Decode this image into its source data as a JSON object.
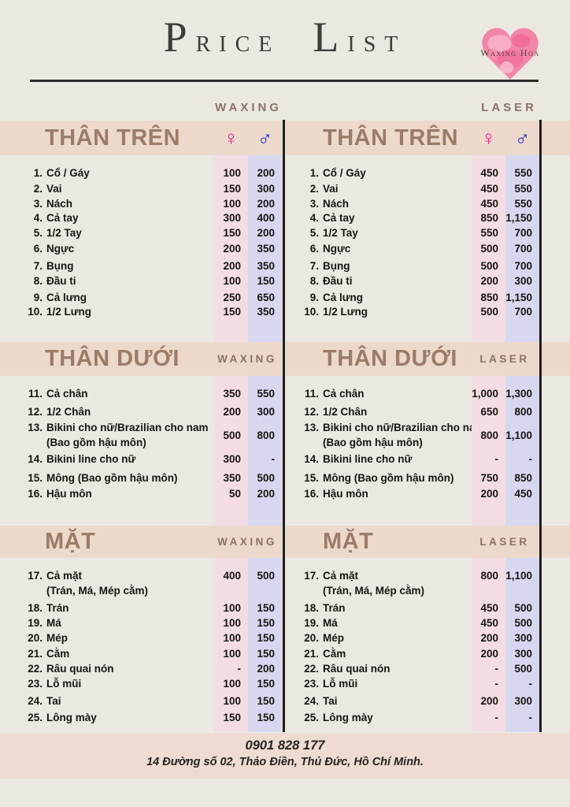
{
  "header": {
    "title_words": [
      "Price",
      "List"
    ],
    "logo_text": "Waxing Hoa"
  },
  "method_labels": {
    "waxing": "WAXING",
    "laser": "LASER"
  },
  "gender": {
    "female_symbol": "♀",
    "male_symbol": "♂"
  },
  "colors": {
    "background": "#ebe8e2",
    "band": "#ecd9cc",
    "female_column": "#f3dce4",
    "male_column": "#d7d8ef",
    "accent_brown": "#9b7c69",
    "female_symbol": "#ed1e7f",
    "male_symbol": "#2a1fd6",
    "heart_pink": "#f286a8"
  },
  "sections": [
    {
      "title": "THÂN TRÊN",
      "items": [
        {
          "num": "1.",
          "label": "Cổ / Gáy",
          "sub": null,
          "wax": [
            "100",
            "200"
          ],
          "laser": [
            "450",
            "550"
          ]
        },
        {
          "num": "2.",
          "label": "Vai",
          "sub": null,
          "wax": [
            "150",
            "300"
          ],
          "laser": [
            "450",
            "550"
          ]
        },
        {
          "num": "3.",
          "label": "Nách",
          "sub": null,
          "wax": [
            "100",
            "200"
          ],
          "laser": [
            "450",
            "550"
          ]
        },
        {
          "num": "4.",
          "label": "Cả tay",
          "sub": null,
          "wax": [
            "300",
            "400"
          ],
          "laser": [
            "850",
            "1,150"
          ]
        },
        {
          "num": "5.",
          "label": "1/2 Tay",
          "sub": null,
          "wax": [
            "150",
            "200"
          ],
          "laser": [
            "550",
            "700"
          ]
        },
        {
          "num": "6.",
          "label": "Ngực",
          "sub": null,
          "wax": [
            "200",
            "350"
          ],
          "laser": [
            "500",
            "700"
          ]
        },
        {
          "num": "7.",
          "label": "Bụng",
          "sub": null,
          "wax": [
            "200",
            "350"
          ],
          "laser": [
            "500",
            "700"
          ]
        },
        {
          "num": "8.",
          "label": "Đầu ti",
          "sub": null,
          "wax": [
            "100",
            "150"
          ],
          "laser": [
            "200",
            "300"
          ]
        },
        {
          "num": "9.",
          "label": "Cả lưng",
          "sub": null,
          "wax": [
            "250",
            "650"
          ],
          "laser": [
            "850",
            "1,150"
          ]
        },
        {
          "num": "10.",
          "label": "1/2 Lưng",
          "sub": null,
          "wax": [
            "150",
            "350"
          ],
          "laser": [
            "500",
            "700"
          ]
        }
      ]
    },
    {
      "title": "THÂN DƯỚI",
      "items": [
        {
          "num": "11.",
          "label": "Cả chân",
          "sub": null,
          "wax": [
            "350",
            "550"
          ],
          "laser": [
            "1,000",
            "1,300"
          ]
        },
        {
          "num": "12.",
          "label": "1/2 Chân",
          "sub": null,
          "wax": [
            "200",
            "300"
          ],
          "laser": [
            "650",
            "800"
          ]
        },
        {
          "num": "13.",
          "label": "Bikini cho nữ/Brazilian cho nam",
          "sub": "(Bao gồm hậu môn)",
          "wax": [
            "500",
            "800"
          ],
          "laser": [
            "800",
            "1,100"
          ]
        },
        {
          "num": "14.",
          "label": "Bikini line cho nữ",
          "sub": null,
          "wax": [
            "300",
            "-"
          ],
          "laser": [
            "-",
            "-"
          ]
        },
        {
          "num": "15.",
          "label": "Mông (Bao gồm hậu môn)",
          "sub": null,
          "wax": [
            "350",
            "500"
          ],
          "laser": [
            "750",
            "850"
          ]
        },
        {
          "num": "16.",
          "label": "Hậu môn",
          "sub": null,
          "wax": [
            "50",
            "200"
          ],
          "laser": [
            "200",
            "450"
          ]
        }
      ]
    },
    {
      "title": "MẶT",
      "items": [
        {
          "num": "17.",
          "label": "Cả mặt",
          "sub": "(Trán, Má, Mép cằm)",
          "wax": [
            "400",
            "500"
          ],
          "laser": [
            "800",
            "1,100"
          ]
        },
        {
          "num": "18.",
          "label": "Trán",
          "sub": null,
          "wax": [
            "100",
            "150"
          ],
          "laser": [
            "450",
            "500"
          ]
        },
        {
          "num": "19.",
          "label": "Má",
          "sub": null,
          "wax": [
            "100",
            "150"
          ],
          "laser": [
            "450",
            "500"
          ]
        },
        {
          "num": "20.",
          "label": "Mép",
          "sub": null,
          "wax": [
            "100",
            "150"
          ],
          "laser": [
            "200",
            "300"
          ]
        },
        {
          "num": "21.",
          "label": "Cằm",
          "sub": null,
          "wax": [
            "100",
            "150"
          ],
          "laser": [
            "200",
            "300"
          ]
        },
        {
          "num": "22.",
          "label": "Râu quai nón",
          "sub": null,
          "wax": [
            "-",
            "200"
          ],
          "laser": [
            "-",
            "500"
          ]
        },
        {
          "num": "23.",
          "label": "Lỗ mũi",
          "sub": null,
          "wax": [
            "100",
            "150"
          ],
          "laser": [
            "-",
            "-"
          ]
        },
        {
          "num": "24.",
          "label": "Tai",
          "sub": null,
          "wax": [
            "100",
            "150"
          ],
          "laser": [
            "200",
            "300"
          ]
        },
        {
          "num": "25.",
          "label": "Lông mày",
          "sub": null,
          "wax": [
            "150",
            "150"
          ],
          "laser": [
            "-",
            "-"
          ]
        }
      ]
    }
  ],
  "footer": {
    "phone": "0901 828 177",
    "address": "14 Đường số 02, Thảo Điền, Thủ Đức, Hồ Chí Minh."
  }
}
